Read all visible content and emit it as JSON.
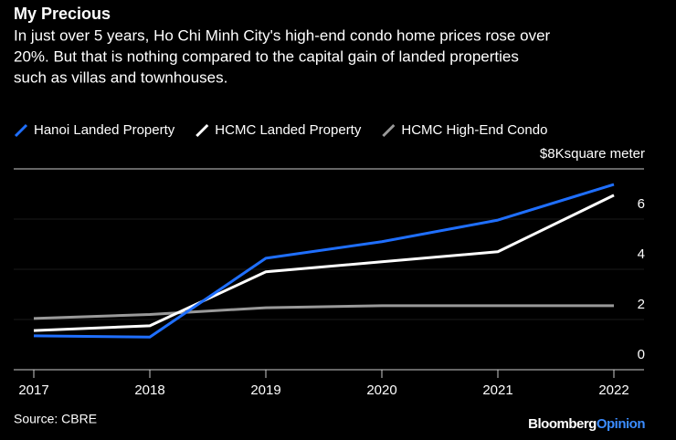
{
  "chart_data": {
    "type": "line",
    "title": "My Precious",
    "subtitle": [
      "In just over 5 years, Ho Chi Minh City's high-end condo home prices rose over",
      "20%. But that is nothing compared to the capital gain of landed properties",
      "such as villas and townhouses."
    ],
    "y_label": "square meter",
    "categories": [
      "2017",
      "2018",
      "2019",
      "2020",
      "2021",
      "2022"
    ],
    "series": [
      {
        "name": "Hanoi Landed Property",
        "color": "#1f6fff",
        "values": [
          1.35,
          1.3,
          4.44,
          5.1,
          5.96,
          7.38
        ]
      },
      {
        "name": "HCMC Landed Property",
        "color": "#ffffff",
        "values": [
          1.56,
          1.75,
          3.9,
          4.3,
          4.7,
          6.95
        ]
      },
      {
        "name": "HCMC High-End Condo",
        "color": "#999999",
        "values": [
          2.04,
          2.2,
          2.47,
          2.55,
          2.55,
          2.55
        ]
      }
    ],
    "ylim": [
      0,
      8
    ],
    "yticks": [
      0,
      2,
      4,
      6,
      {
        "value": 8,
        "label": "$8K"
      }
    ],
    "grid": true,
    "source": "Source: CBRE",
    "branding": [
      "Bloomberg",
      "Opinion"
    ]
  }
}
